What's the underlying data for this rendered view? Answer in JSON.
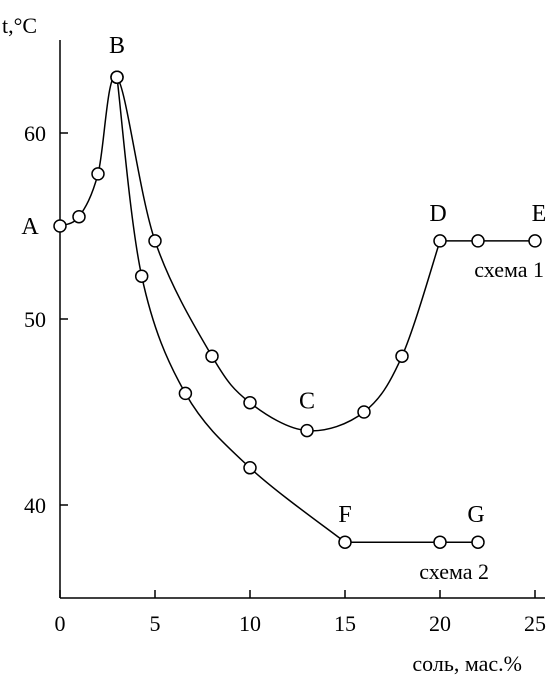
{
  "chart_data": {
    "type": "line",
    "title": "",
    "xlabel": "соль, мас.%",
    "ylabel": "t,°C",
    "xlim": [
      0,
      25
    ],
    "ylim": [
      35,
      65
    ],
    "xticks": [
      "0",
      "5",
      "10",
      "15",
      "20",
      "25"
    ],
    "yticks": [
      "40",
      "50",
      "60"
    ],
    "grid": false,
    "series": [
      {
        "name": "схема 1",
        "x": [
          0,
          1,
          2,
          3,
          5,
          8,
          10,
          13,
          16,
          18,
          20,
          22,
          25
        ],
        "y": [
          55,
          55.5,
          57.8,
          63,
          54.2,
          48,
          45.5,
          44,
          45,
          48,
          54.2,
          54.2,
          54.2
        ]
      },
      {
        "name": "схема 2",
        "x": [
          3,
          4.3,
          6.6,
          10,
          15,
          20,
          22
        ],
        "y": [
          63,
          52.3,
          46,
          42,
          38,
          38,
          38
        ]
      }
    ],
    "point_labels": [
      {
        "text": "A",
        "x": 0,
        "y": 55
      },
      {
        "text": "B",
        "x": 3,
        "y": 63
      },
      {
        "text": "C",
        "x": 13,
        "y": 44
      },
      {
        "text": "D",
        "x": 20,
        "y": 54.2
      },
      {
        "text": "E",
        "x": 25,
        "y": 54.2
      },
      {
        "text": "F",
        "x": 15,
        "y": 38
      },
      {
        "text": "G",
        "x": 22,
        "y": 38
      }
    ]
  }
}
